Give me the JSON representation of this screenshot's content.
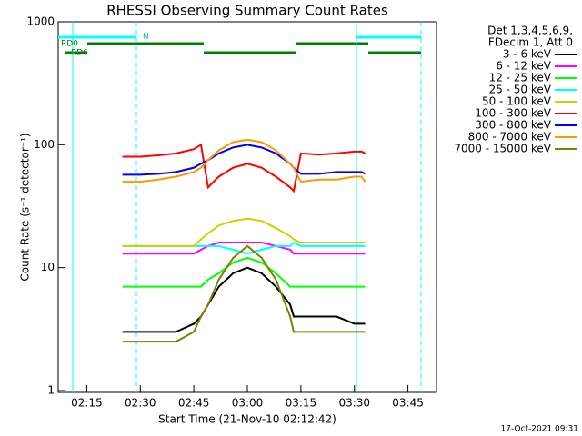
{
  "chart_data": {
    "type": "line",
    "title": "RHESSI Observing Summary Count Rates",
    "xlabel": "Start Time (21-Nov-10 02:12:42)",
    "ylabel": "Count Rate (s⁻¹ detector⁻¹)",
    "legend_title": [
      "Det 1,3,4,5,6,9,",
      "FDecim 1, Att 0"
    ],
    "footer": "17-Oct-2021 09:31",
    "annotations": [
      "RD0",
      "RD6",
      "N"
    ],
    "log_y": true,
    "xlim": [
      7,
      113
    ],
    "xticks": [
      {
        "value": 15,
        "label": "02:15"
      },
      {
        "value": 30,
        "label": "02:30"
      },
      {
        "value": 45,
        "label": "02:45"
      },
      {
        "value": 60,
        "label": "03:00"
      },
      {
        "value": 75,
        "label": "03:15"
      },
      {
        "value": 90,
        "label": "03:30"
      },
      {
        "value": 105,
        "label": "03:45"
      }
    ],
    "ylim": [
      1,
      1000
    ],
    "yticks": [
      1,
      10,
      100,
      1000
    ],
    "x": [
      25,
      30,
      35,
      40,
      45,
      47,
      49,
      52,
      56,
      60,
      64,
      68,
      72,
      73,
      75,
      80,
      85,
      90,
      92,
      93
    ],
    "series": [
      {
        "name": "3 - 6 keV",
        "color": "#000000",
        "values": [
          3,
          3,
          3,
          3,
          3.5,
          4,
          5,
          7,
          9,
          10,
          9,
          7,
          5,
          4,
          4,
          4,
          4,
          3.5,
          3.5,
          3.5
        ]
      },
      {
        "name": "6 - 12 keV",
        "color": "#ff00ff",
        "values": [
          13,
          13,
          13,
          13,
          13,
          14,
          15,
          16,
          16,
          16,
          16,
          15,
          14,
          13,
          13,
          13,
          13,
          13,
          13,
          13
        ]
      },
      {
        "name": "12 - 25 keV",
        "color": "#00ff00",
        "values": [
          7,
          7,
          7,
          7,
          7,
          7,
          8,
          9,
          11,
          12,
          11,
          9,
          7,
          7,
          7,
          7,
          7,
          7,
          7,
          7
        ]
      },
      {
        "name": "25 - 50 keV",
        "color": "#00ffff",
        "values": [
          15,
          15,
          15,
          15,
          15,
          15,
          15,
          15,
          14,
          13,
          14,
          15,
          15,
          16,
          15,
          15,
          15,
          15,
          15,
          15
        ]
      },
      {
        "name": "50 - 100 keV",
        "color": "#d0d000",
        "values": [
          15,
          15,
          15,
          15,
          15,
          17,
          19,
          22,
          24,
          25,
          24,
          21,
          18,
          17,
          16,
          16,
          16,
          16,
          16,
          16
        ]
      },
      {
        "name": "100 - 300 keV",
        "color": "#ff0000",
        "values": [
          80,
          80,
          82,
          85,
          92,
          100,
          45,
          55,
          65,
          70,
          65,
          55,
          45,
          42,
          85,
          83,
          85,
          88,
          88,
          85
        ]
      },
      {
        "name": "300 - 800 keV",
        "color": "#0000ff",
        "values": [
          57,
          57,
          58,
          60,
          65,
          70,
          75,
          85,
          95,
          100,
          95,
          85,
          70,
          65,
          58,
          58,
          60,
          60,
          60,
          58
        ]
      },
      {
        "name": "800 - 7000 keV",
        "color": "#ff9900",
        "values": [
          50,
          50,
          52,
          55,
          60,
          65,
          75,
          90,
          105,
          110,
          105,
          90,
          70,
          65,
          50,
          52,
          52,
          55,
          55,
          50
        ]
      },
      {
        "name": "7000 - 15000 keV",
        "color": "#808000",
        "values": [
          2.5,
          2.5,
          2.5,
          2.5,
          3,
          4,
          5,
          8,
          12,
          15,
          12,
          8,
          4,
          3,
          3,
          3,
          3,
          3,
          3,
          3
        ]
      }
    ]
  }
}
